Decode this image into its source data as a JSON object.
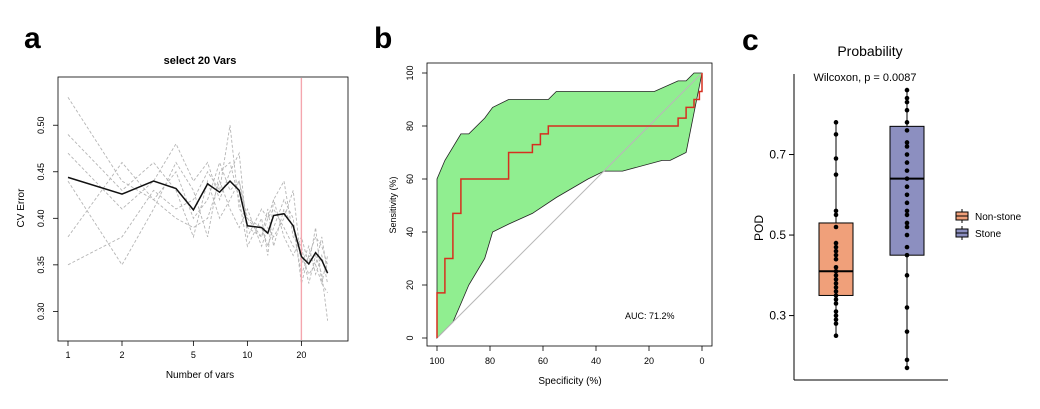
{
  "chart_data": [
    {
      "panel": "a",
      "type": "line",
      "title": "select 20 Vars",
      "xlabel": "Number of vars",
      "ylabel": "CV Error",
      "xscale": "log",
      "xlim": [
        1,
        32
      ],
      "ylim": [
        0.28,
        0.54
      ],
      "xticks": [
        1,
        2,
        5,
        10,
        20
      ],
      "xtick_labels": [
        "1",
        "2",
        "5",
        "10",
        "20"
      ],
      "yticks": [
        0.3,
        0.35,
        0.4,
        0.45,
        0.5
      ],
      "ytick_labels": [
        "0.30",
        "0.35",
        "0.40",
        "0.45",
        "0.50"
      ],
      "vline": 20,
      "vline_color": "#f4a6ae",
      "x": [
        1,
        2,
        3,
        4,
        5,
        6,
        7,
        8,
        9,
        10,
        12,
        13,
        14,
        16,
        18,
        20,
        22,
        24,
        26,
        28
      ],
      "mean_series": {
        "name": "mean CV error",
        "values": [
          0.444,
          0.426,
          0.44,
          0.432,
          0.409,
          0.437,
          0.428,
          0.44,
          0.43,
          0.392,
          0.39,
          0.384,
          0.403,
          0.405,
          0.392,
          0.359,
          0.351,
          0.363,
          0.355,
          0.341
        ]
      },
      "fold_series": [
        {
          "name": "fold 1",
          "values": [
            0.53,
            0.44,
            0.42,
            0.45,
            0.4,
            0.42,
            0.46,
            0.43,
            0.44,
            0.4,
            0.38,
            0.4,
            0.41,
            0.39,
            0.37,
            0.36,
            0.34,
            0.35,
            0.33,
            0.32
          ]
        },
        {
          "name": "fold 2",
          "values": [
            0.35,
            0.38,
            0.43,
            0.41,
            0.42,
            0.45,
            0.43,
            0.5,
            0.41,
            0.4,
            0.39,
            0.37,
            0.39,
            0.42,
            0.4,
            0.33,
            0.36,
            0.38,
            0.37,
            0.35
          ]
        },
        {
          "name": "fold 3",
          "values": [
            0.47,
            0.41,
            0.44,
            0.48,
            0.44,
            0.46,
            0.42,
            0.45,
            0.47,
            0.38,
            0.41,
            0.4,
            0.42,
            0.44,
            0.38,
            0.37,
            0.33,
            0.36,
            0.34,
            0.29
          ]
        },
        {
          "name": "fold 4",
          "values": [
            0.38,
            0.46,
            0.42,
            0.4,
            0.39,
            0.4,
            0.44,
            0.41,
            0.39,
            0.41,
            0.37,
            0.39,
            0.38,
            0.4,
            0.43,
            0.35,
            0.37,
            0.34,
            0.36,
            0.33
          ]
        },
        {
          "name": "fold 5",
          "values": [
            0.44,
            0.35,
            0.41,
            0.46,
            0.43,
            0.38,
            0.45,
            0.46,
            0.42,
            0.37,
            0.4,
            0.36,
            0.42,
            0.38,
            0.36,
            0.38,
            0.35,
            0.39,
            0.33,
            0.36
          ]
        },
        {
          "name": "fold 6",
          "values": [
            0.49,
            0.43,
            0.46,
            0.43,
            0.38,
            0.44,
            0.4,
            0.42,
            0.44,
            0.39,
            0.38,
            0.41,
            0.37,
            0.41,
            0.39,
            0.34,
            0.36,
            0.35,
            0.38,
            0.34
          ]
        }
      ]
    },
    {
      "panel": "b",
      "type": "line",
      "subtype": "roc",
      "xlabel": "Specificity (%)",
      "ylabel": "Sensitivity (%)",
      "xlim": [
        100,
        0
      ],
      "ylim": [
        0,
        100
      ],
      "xticks": [
        100,
        80,
        60,
        40,
        20,
        0
      ],
      "xtick_labels": [
        "100",
        "80",
        "60",
        "40",
        "20",
        "0"
      ],
      "yticks": [
        0,
        20,
        40,
        60,
        80,
        100
      ],
      "ytick_labels": [
        "0",
        "20",
        "40",
        "60",
        "80",
        "100"
      ],
      "annotation": "AUC: 71.2%",
      "curve_color": "#d62f1f",
      "ci_fill": "#90ee90",
      "diagonal_color": "#b8b8b8",
      "roc_specificity": [
        100,
        100,
        97,
        97,
        94,
        94,
        91,
        91,
        73,
        73,
        64,
        64,
        61,
        61,
        58,
        58,
        9,
        9,
        6,
        6,
        3,
        3,
        1,
        1,
        0,
        0
      ],
      "roc_sensitivity": [
        0,
        17,
        17,
        30,
        30,
        47,
        47,
        60,
        60,
        70,
        70,
        73,
        73,
        77,
        77,
        80,
        80,
        83,
        83,
        87,
        87,
        90,
        90,
        93,
        93,
        100
      ],
      "ci_upper": {
        "specificity": [
          100,
          100,
          97,
          94,
          91,
          88,
          82,
          79,
          73,
          64,
          58,
          55,
          18,
          9,
          6,
          3,
          0
        ],
        "sensitivity": [
          0,
          60,
          67,
          72,
          77,
          77,
          83,
          87,
          90,
          90,
          90,
          93,
          93,
          97,
          97,
          100,
          100
        ]
      },
      "ci_lower": {
        "specificity": [
          100,
          97,
          94,
          91,
          88,
          82,
          79,
          73,
          64,
          55,
          43,
          37,
          30,
          15,
          12,
          6,
          3,
          0
        ],
        "sensitivity": [
          0,
          3,
          6,
          13,
          20,
          30,
          40,
          43,
          47,
          53,
          60,
          63,
          63,
          67,
          67,
          70,
          85,
          100
        ]
      }
    },
    {
      "panel": "c",
      "type": "boxplot",
      "title": "Probability",
      "ylabel": "POD",
      "annotation": "Wilcoxon, p = 0.0087",
      "ylim": [
        0.14,
        0.9
      ],
      "yticks": [
        0.3,
        0.5,
        0.7
      ],
      "ytick_labels": [
        "0.3",
        "0.5",
        "0.7"
      ],
      "legend_position": "right",
      "groups": [
        {
          "name": "Non-stone",
          "color": "#f0a07a",
          "whisker_low": 0.25,
          "q1": 0.35,
          "median": 0.41,
          "q3": 0.53,
          "whisker_high": 0.78,
          "points": [
            0.25,
            0.28,
            0.29,
            0.3,
            0.31,
            0.33,
            0.34,
            0.35,
            0.36,
            0.37,
            0.38,
            0.39,
            0.4,
            0.41,
            0.42,
            0.44,
            0.45,
            0.46,
            0.47,
            0.48,
            0.52,
            0.55,
            0.56,
            0.65,
            0.69,
            0.75,
            0.78
          ]
        },
        {
          "name": "Stone",
          "color": "#8c8fc0",
          "whisker_low": 0.17,
          "q1": 0.45,
          "median": 0.64,
          "q3": 0.77,
          "whisker_high": 0.86,
          "points": [
            0.17,
            0.19,
            0.26,
            0.32,
            0.4,
            0.45,
            0.47,
            0.5,
            0.52,
            0.53,
            0.55,
            0.56,
            0.58,
            0.6,
            0.62,
            0.64,
            0.66,
            0.68,
            0.7,
            0.72,
            0.73,
            0.76,
            0.78,
            0.81,
            0.83,
            0.84,
            0.86
          ]
        }
      ]
    }
  ],
  "labels": {
    "a": "a",
    "b": "b",
    "c": "c"
  }
}
